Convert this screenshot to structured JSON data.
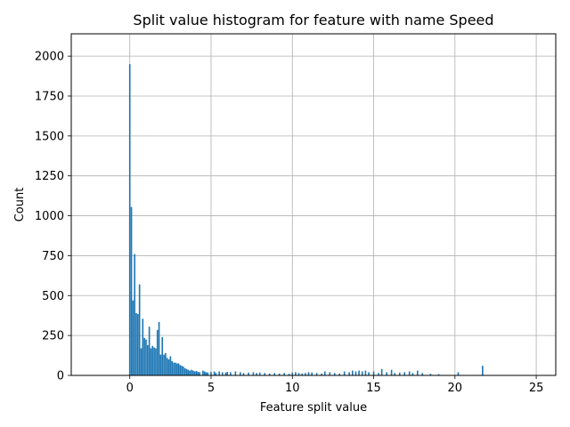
{
  "chart_data": {
    "type": "bar",
    "title": "Split value histogram for feature with name Speed",
    "xlabel": "Feature split value",
    "ylabel": "Count",
    "xlim": [
      -3.6,
      26.2
    ],
    "ylim": [
      0,
      2140
    ],
    "xticks": [
      0,
      5,
      10,
      15,
      20,
      25
    ],
    "yticks": [
      0,
      250,
      500,
      750,
      1000,
      1250,
      1500,
      1750,
      2000
    ],
    "grid": true,
    "bar_width": 0.09,
    "color": "#1f77b4",
    "series": [
      {
        "x": [
          0.0,
          0.1,
          0.2,
          0.3,
          0.4,
          0.5,
          0.6,
          0.7,
          0.8,
          0.9,
          1.0,
          1.1,
          1.2,
          1.3,
          1.4,
          1.5,
          1.6,
          1.7,
          1.8,
          1.9,
          2.0,
          2.1,
          2.2,
          2.3,
          2.4,
          2.5,
          2.6,
          2.7,
          2.8,
          2.9,
          3.0,
          3.1,
          3.2,
          3.3,
          3.4,
          3.5,
          3.6,
          3.7,
          3.8,
          3.9,
          4.0,
          4.1,
          4.2,
          4.3,
          4.5,
          4.6,
          4.7,
          4.8,
          5.0,
          5.2,
          5.3,
          5.5,
          5.7,
          5.9,
          6.0,
          6.2,
          6.5,
          6.8,
          7.0,
          7.3,
          7.6,
          7.8,
          8.0,
          8.3,
          8.6,
          8.9,
          9.2,
          9.5,
          9.8,
          10.0,
          10.2,
          10.4,
          10.6,
          10.8,
          11.0,
          11.2,
          11.5,
          11.8,
          12.0,
          12.3,
          12.6,
          12.9,
          13.2,
          13.5,
          13.7,
          13.9,
          14.1,
          14.3,
          14.5,
          14.7,
          15.0,
          15.3,
          15.5,
          15.8,
          16.1,
          16.3,
          16.6,
          16.9,
          17.2,
          17.4,
          17.7,
          18.0,
          18.5,
          19.0,
          20.2,
          21.7
        ],
        "values": [
          1950,
          1055,
          470,
          760,
          390,
          385,
          570,
          170,
          355,
          235,
          225,
          190,
          305,
          170,
          185,
          175,
          170,
          285,
          335,
          130,
          240,
          130,
          140,
          110,
          100,
          120,
          90,
          80,
          80,
          75,
          75,
          65,
          60,
          55,
          45,
          40,
          35,
          30,
          35,
          30,
          25,
          28,
          22,
          20,
          30,
          25,
          20,
          18,
          22,
          25,
          15,
          25,
          20,
          18,
          22,
          20,
          25,
          20,
          15,
          18,
          20,
          15,
          18,
          15,
          12,
          15,
          12,
          15,
          10,
          18,
          20,
          15,
          12,
          15,
          20,
          18,
          15,
          12,
          25,
          20,
          15,
          12,
          25,
          20,
          30,
          25,
          30,
          25,
          30,
          20,
          25,
          15,
          40,
          20,
          35,
          15,
          18,
          20,
          25,
          15,
          30,
          15,
          10,
          8,
          20,
          60
        ]
      }
    ]
  }
}
